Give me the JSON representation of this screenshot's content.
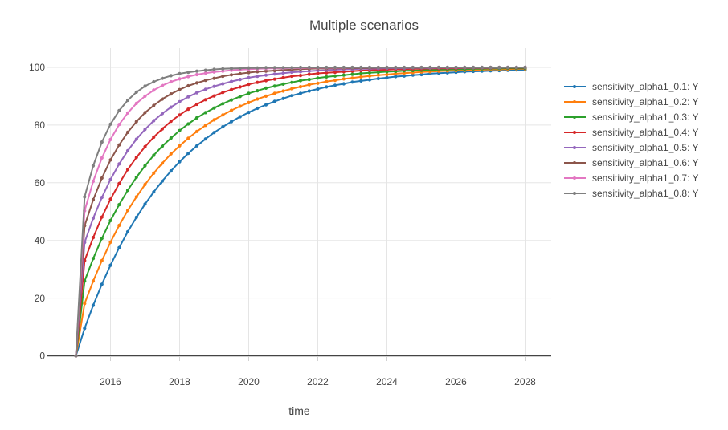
{
  "chart_data": {
    "type": "line",
    "title": "Multiple scenarios",
    "xlabel": "time",
    "ylabel": "",
    "x_start": 2015,
    "x_step": 0.25,
    "xlim": [
      2014.15,
      2028.77
    ],
    "ylim": [
      0,
      107
    ],
    "x_ticks": [
      2016,
      2018,
      2020,
      2022,
      2024,
      2026,
      2028
    ],
    "y_ticks": [
      0,
      20,
      40,
      60,
      80,
      100
    ],
    "grid": true,
    "markers": true,
    "legend_position": "right",
    "series": [
      {
        "name": "sensitivity_alpha1_0.1: Y",
        "alpha1": "0.1",
        "color": "#1f77b4",
        "values": [
          0,
          9.5,
          17.5,
          24.8,
          31.4,
          37.5,
          43,
          48,
          52.6,
          56.8,
          60.6,
          64.1,
          67.3,
          70.2,
          72.8,
          75.2,
          77.4,
          79.4,
          81.2,
          82.9,
          84.4,
          85.8,
          87,
          88.2,
          89.2,
          90.2,
          91,
          91.8,
          92.5,
          93.2,
          93.8,
          94.3,
          94.9,
          95.3,
          95.7,
          96.1,
          96.4,
          96.8,
          97,
          97.3,
          97.5,
          97.8,
          98,
          98.1,
          98.3,
          98.5,
          98.6,
          98.7,
          98.8,
          98.9,
          99,
          99.1,
          99.2
        ]
      },
      {
        "name": "sensitivity_alpha1_0.2: Y",
        "alpha1": "0.2",
        "color": "#ff7f0e",
        "values": [
          0,
          18.1,
          25.9,
          33,
          39.4,
          45.2,
          50.4,
          55.1,
          59.4,
          63.3,
          66.8,
          70,
          72.8,
          75.4,
          77.8,
          79.9,
          81.8,
          83.5,
          85.1,
          86.5,
          87.8,
          89,
          90,
          91,
          91.8,
          92.6,
          93.3,
          94,
          94.5,
          95.1,
          95.5,
          96,
          96.3,
          96.7,
          97,
          97.3,
          97.5,
          97.8,
          98,
          98.2,
          98.4,
          98.5,
          98.7,
          98.8,
          98.9,
          99,
          99.1,
          99.2,
          99.3,
          99.3,
          99.4,
          99.5,
          99.5
        ]
      },
      {
        "name": "sensitivity_alpha1_0.3: Y",
        "alpha1": "0.3",
        "color": "#2ca02c",
        "values": [
          0,
          25.9,
          33.7,
          40.7,
          46.9,
          52.4,
          57.4,
          61.9,
          65.9,
          69.5,
          72.7,
          75.5,
          78.1,
          80.4,
          82.5,
          84.3,
          85.9,
          87.4,
          88.7,
          89.9,
          91,
          91.9,
          92.8,
          93.5,
          94.2,
          94.8,
          95.4,
          95.8,
          96.3,
          96.7,
          97,
          97.3,
          97.6,
          97.9,
          98.1,
          98.3,
          98.5,
          98.6,
          98.8,
          98.9,
          99,
          99.1,
          99.2,
          99.3,
          99.4,
          99.4,
          99.5,
          99.5,
          99.6,
          99.6,
          99.7,
          99.7,
          99.7
        ]
      },
      {
        "name": "sensitivity_alpha1_0.4: Y",
        "alpha1": "0.4",
        "color": "#d62728",
        "values": [
          0,
          33,
          41,
          48.1,
          54.3,
          59.7,
          64.6,
          68.8,
          72.5,
          75.8,
          78.7,
          81.3,
          83.5,
          85.5,
          87.2,
          88.8,
          90.1,
          91.3,
          92.3,
          93.2,
          94.1,
          94.8,
          95.4,
          95.9,
          96.4,
          96.9,
          97.2,
          97.6,
          97.9,
          98.1,
          98.3,
          98.5,
          98.7,
          98.9,
          99,
          99.1,
          99.2,
          99.3,
          99.4,
          99.5,
          99.5,
          99.6,
          99.6,
          99.7,
          99.7,
          99.8,
          99.8,
          99.8,
          99.8,
          99.9,
          99.9,
          99.9,
          99.9
        ]
      },
      {
        "name": "sensitivity_alpha1_0.5: Y",
        "alpha1": "0.5",
        "color": "#9467bd",
        "values": [
          0,
          39.3,
          47.7,
          54.9,
          61.1,
          66.5,
          71.1,
          75.1,
          78.5,
          81.5,
          84,
          86.2,
          88.1,
          89.8,
          91.2,
          92.4,
          93.4,
          94.3,
          95.1,
          95.8,
          96.4,
          96.9,
          97.3,
          97.7,
          98,
          98.3,
          98.5,
          98.7,
          98.9,
          99,
          99.2,
          99.3,
          99.4,
          99.5,
          99.5,
          99.6,
          99.7,
          99.7,
          99.7,
          99.8,
          99.8,
          99.8,
          99.9,
          99.9,
          99.9,
          99.9,
          99.9,
          99.9,
          99.9,
          99.9,
          100,
          100,
          100
        ]
      },
      {
        "name": "sensitivity_alpha1_0.6: Y",
        "alpha1": "0.6",
        "color": "#8c564b",
        "values": [
          0,
          45.1,
          54.1,
          61.6,
          67.9,
          73.1,
          77.5,
          81.2,
          84.3,
          86.8,
          89,
          90.8,
          92.3,
          93.6,
          94.6,
          95.5,
          96.2,
          96.9,
          97.4,
          97.8,
          98.2,
          98.5,
          98.7,
          98.9,
          99.1,
          99.2,
          99.4,
          99.5,
          99.6,
          99.6,
          99.7,
          99.7,
          99.8,
          99.8,
          99.8,
          99.9,
          99.9,
          99.9,
          99.9,
          99.9,
          99.9,
          100,
          100,
          100,
          100,
          100,
          100,
          100,
          100,
          100,
          100,
          100,
          100
        ]
      },
      {
        "name": "sensitivity_alpha1_0.7: Y",
        "alpha1": "0.7",
        "color": "#e377c2",
        "values": [
          0,
          50.3,
          60.5,
          68.6,
          75,
          80.2,
          84.2,
          87.5,
          90,
          92.1,
          93.7,
          95,
          96,
          96.8,
          97.5,
          98,
          98.4,
          98.7,
          99,
          99.2,
          99.4,
          99.5,
          99.6,
          99.7,
          99.7,
          99.8,
          99.8,
          99.9,
          99.9,
          99.9,
          99.9,
          99.9,
          100,
          100,
          100,
          100,
          100,
          100,
          100,
          100,
          100,
          100,
          100,
          100,
          100,
          100,
          100,
          100,
          100,
          100,
          100,
          100,
          100
        ]
      },
      {
        "name": "sensitivity_alpha1_0.8: Y",
        "alpha1": "0.8",
        "color": "#7f7f7f",
        "values": [
          0,
          55.1,
          65.9,
          74.1,
          80.3,
          85,
          88.6,
          91.4,
          93.5,
          95,
          96.2,
          97.1,
          97.8,
          98.3,
          98.7,
          99,
          99.3,
          99.5,
          99.6,
          99.7,
          99.8,
          99.8,
          99.9,
          99.9,
          99.9,
          99.9,
          100,
          100,
          100,
          100,
          100,
          100,
          100,
          100,
          100,
          100,
          100,
          100,
          100,
          100,
          100,
          100,
          100,
          100,
          100,
          100,
          100,
          100,
          100,
          100,
          100,
          100,
          100
        ]
      }
    ]
  },
  "style": {
    "background": "#ffffff",
    "grid_color": "#e5e5e5",
    "axis_line_color": "#444444",
    "tick_mark_color": "#d2d2d2",
    "text_color": "#444444",
    "line_width": 2
  }
}
